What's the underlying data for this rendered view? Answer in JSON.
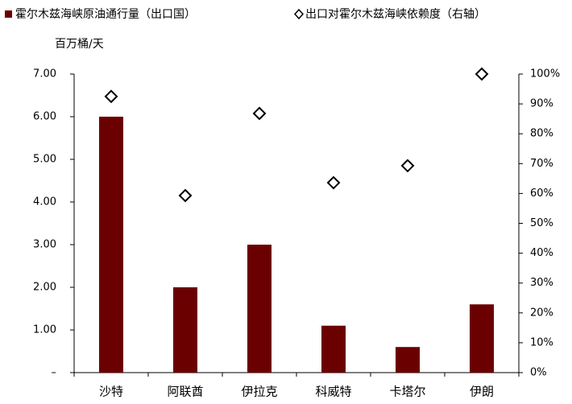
{
  "chart_data": {
    "type": "bar-scatter",
    "y_label": "百万桶/天",
    "categories": [
      "沙特",
      "阿联酋",
      "伊拉克",
      "科威特",
      "卡塔尔",
      "伊朗"
    ],
    "series": [
      {
        "name": "霍尔木兹海峡原油通行量（出口国）",
        "color": "#6b0000",
        "type": "bar",
        "values": [
          6.0,
          2.0,
          3.0,
          1.1,
          0.6,
          1.6
        ]
      },
      {
        "name": "出口对霍尔木兹海峡依赖度（右轴）",
        "color": "#000000",
        "type": "scatter",
        "axis": "y2",
        "values": [
          92.5,
          59.3,
          86.8,
          63.6,
          69.3,
          100
        ]
      }
    ],
    "ylim": [
      0,
      7
    ],
    "yticks": [
      {
        "value": 0,
        "label": "–"
      },
      {
        "value": 1,
        "label": "1.00"
      },
      {
        "value": 2,
        "label": "2.00"
      },
      {
        "value": 3,
        "label": "3.00"
      },
      {
        "value": 4,
        "label": "4.00"
      },
      {
        "value": 5,
        "label": "5.00"
      },
      {
        "value": 6,
        "label": "6.00"
      },
      {
        "value": 7,
        "label": "7.00"
      }
    ],
    "y2lim": [
      0,
      100
    ],
    "y2ticks": [
      {
        "value": 0,
        "label": "0%"
      },
      {
        "value": 10,
        "label": "10%"
      },
      {
        "value": 20,
        "label": "20%"
      },
      {
        "value": 30,
        "label": "30%"
      },
      {
        "value": 40,
        "label": "40%"
      },
      {
        "value": 50,
        "label": "50%"
      },
      {
        "value": 60,
        "label": "60%"
      },
      {
        "value": 70,
        "label": "70%"
      },
      {
        "value": 80,
        "label": "80%"
      },
      {
        "value": 90,
        "label": "90%"
      },
      {
        "value": 100,
        "label": "100%"
      }
    ],
    "legend": "top"
  }
}
